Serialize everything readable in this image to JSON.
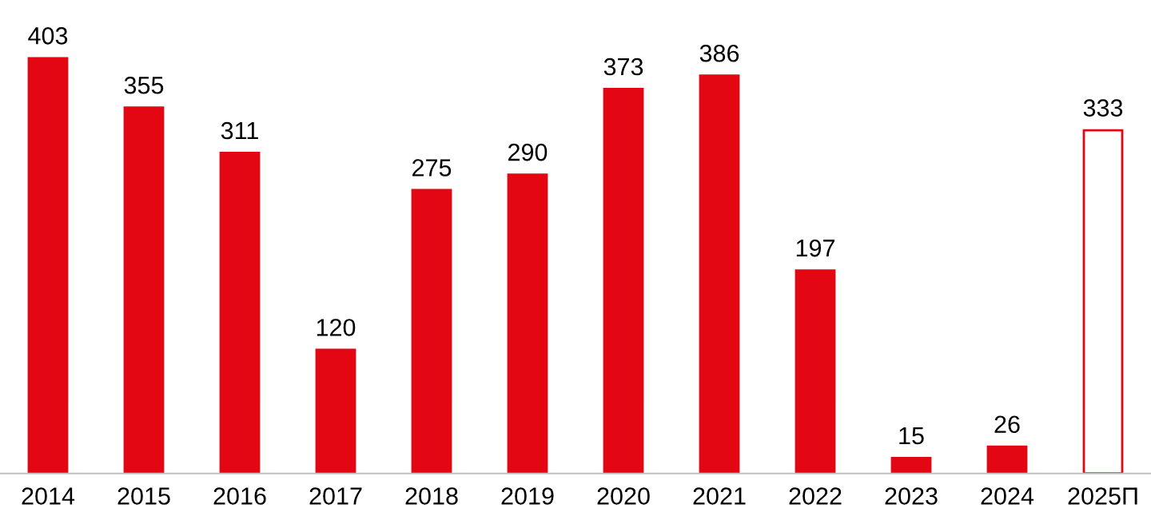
{
  "chart_data": {
    "type": "bar",
    "categories": [
      "2014",
      "2015",
      "2016",
      "2017",
      "2018",
      "2019",
      "2020",
      "2021",
      "2022",
      "2023",
      "2024",
      "2025П"
    ],
    "values": [
      403,
      355,
      311,
      120,
      275,
      290,
      373,
      386,
      197,
      15,
      26,
      333
    ],
    "color": "#e30613",
    "colors": [
      "#e30613",
      "#e30613",
      "#e30613",
      "#e30613",
      "#e30613",
      "#e30613",
      "#e30613",
      "#e30613",
      "#e30613",
      "#e30613",
      "#e30613",
      "#ffffff"
    ],
    "data_labels": true
  }
}
